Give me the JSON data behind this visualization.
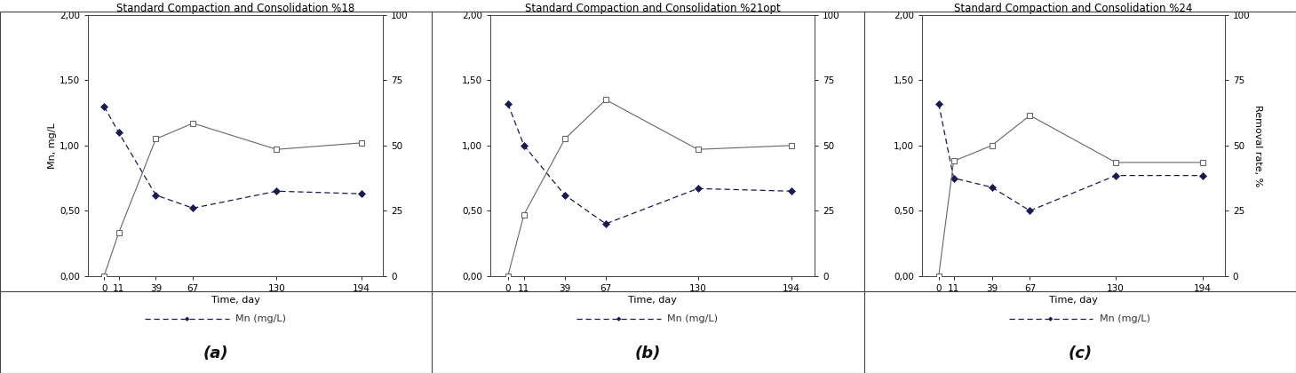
{
  "panels": [
    {
      "title": "Standard Compaction and Consolidation %18",
      "label": "(a)",
      "x": [
        0,
        11,
        39,
        67,
        130,
        194
      ],
      "mn": [
        1.3,
        1.1,
        0.62,
        0.52,
        0.65,
        0.63
      ],
      "removal": [
        0.0,
        16.5,
        52.5,
        58.5,
        48.5,
        51.0
      ]
    },
    {
      "title": "Standard Compaction and Consolidation %21opt",
      "label": "(b)",
      "x": [
        0,
        11,
        39,
        67,
        130,
        194
      ],
      "mn": [
        1.32,
        1.0,
        0.62,
        0.4,
        0.67,
        0.65
      ],
      "removal": [
        0.0,
        23.5,
        52.5,
        67.5,
        48.5,
        50.0
      ]
    },
    {
      "title": "Standard Compaction and Consolidation %24",
      "label": "(c)",
      "x": [
        0,
        11,
        39,
        67,
        130,
        194
      ],
      "mn": [
        1.32,
        0.75,
        0.68,
        0.5,
        0.77,
        0.77
      ],
      "removal": [
        0.0,
        44.0,
        50.0,
        61.5,
        43.5,
        43.5
      ]
    }
  ],
  "xlabel": "Time, day",
  "ylabel_left": "Mn, mg/L",
  "ylabel_right": "Removal rate, %",
  "ylim_left": [
    0.0,
    2.0
  ],
  "ylim_right": [
    0,
    100
  ],
  "yticks_left": [
    0.0,
    0.5,
    1.0,
    1.5,
    2.0
  ],
  "ytick_labels_left": [
    "0,00",
    "0,50",
    "1,00",
    "1,50",
    "2,00"
  ],
  "yticks_right": [
    0,
    25,
    50,
    75,
    100
  ],
  "ytick_labels_right": [
    "0",
    "25",
    "50",
    "75",
    "100"
  ],
  "mn_color": "#1a1a4e",
  "removal_color": "#666666",
  "background_color": "#ffffff",
  "legend_label": "Mn (mg/L)",
  "title_fontsize": 8.5,
  "tick_fontsize": 7.5,
  "label_fontsize": 8,
  "legend_fontsize": 8,
  "panel_label_fontsize": 13
}
